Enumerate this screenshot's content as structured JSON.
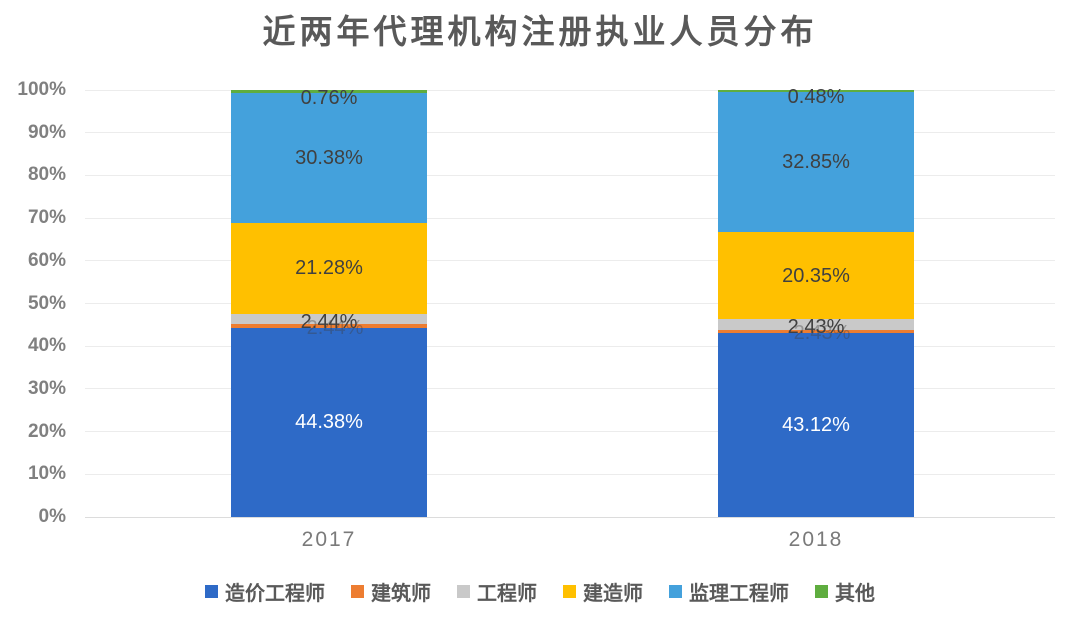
{
  "title": "近两年代理机构注册执业人员分布",
  "chart_data": {
    "type": "bar",
    "subtype": "stacked-percentage",
    "title": "近两年代理机构注册执业人员分布",
    "categories": [
      "2017",
      "2018"
    ],
    "series": [
      {
        "key": "cost-engineer",
        "name": "造价工程师",
        "color": "#2e6ac7",
        "values": [
          44.38,
          43.12
        ],
        "labels": [
          "44.38%",
          "43.12%"
        ],
        "label_color": "#ffffff",
        "label_dy": 0
      },
      {
        "key": "architect",
        "name": "建筑师",
        "color": "#ed7d31",
        "values": [
          0.76,
          0.77
        ],
        "labels": [
          "",
          ""
        ],
        "ghost_labels": [
          "2.44%",
          "2.43%"
        ],
        "label_color": "#404040",
        "label_dy": 2
      },
      {
        "key": "engineer",
        "name": "工程师",
        "color": "#c9c9c9",
        "values": [
          2.44,
          2.43
        ],
        "labels": [
          "2.44%",
          "2.43%"
        ],
        "label_color": "#404040",
        "label_dy": 3
      },
      {
        "key": "constructor",
        "name": "建造师",
        "color": "#ffc000",
        "values": [
          21.28,
          20.35
        ],
        "labels": [
          "21.28%",
          "20.35%"
        ],
        "label_color": "#404040",
        "label_dy": 0
      },
      {
        "key": "supervision-engineer",
        "name": "监理工程师",
        "color": "#44a1dc",
        "values": [
          30.38,
          32.85
        ],
        "labels": [
          "30.38%",
          "32.85%"
        ],
        "label_color": "#404040",
        "label_dy": 0
      },
      {
        "key": "other",
        "name": "其他",
        "color": "#5fad3f",
        "values": [
          0.76,
          0.48
        ],
        "labels": [
          "0.76%",
          "0.48%"
        ],
        "label_color": "#404040",
        "label_dy": 6
      }
    ],
    "y_axis": {
      "min": 0,
      "max": 100,
      "step": 10,
      "suffix": "%"
    },
    "x_axis_labels": [
      "2017",
      "2018"
    ],
    "legend_position": "bottom",
    "grid": true
  },
  "colors": {
    "background": "#ffffff",
    "gridline": "#ececec",
    "baseline": "#dcdcdc",
    "axis_text": "#808080",
    "title_text": "#595959",
    "segment_label_text": "#404040",
    "legend_text": "#595959"
  }
}
